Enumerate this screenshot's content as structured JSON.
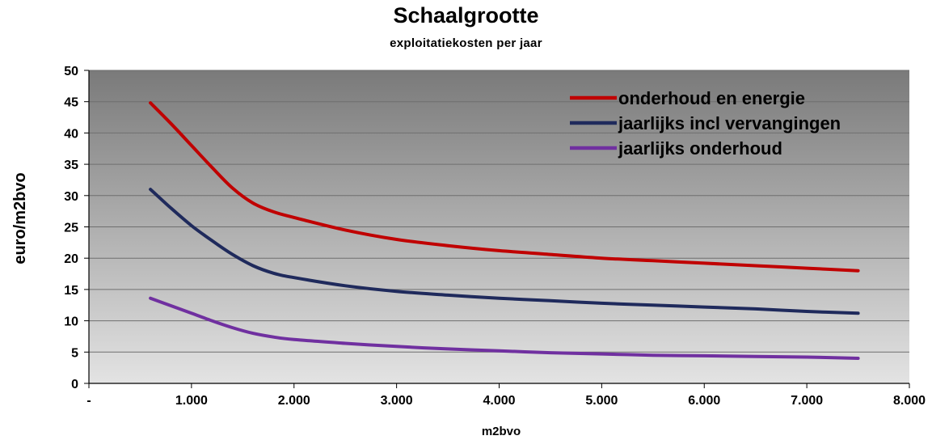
{
  "chart_data": {
    "type": "line",
    "title": "Schaalgrootte",
    "subtitle": "exploitatiekosten  per  jaar",
    "xlabel": "m2bvo",
    "ylabel": "euro/m2bvo",
    "xlim": [
      0,
      8000
    ],
    "ylim": [
      0,
      50
    ],
    "x_ticks": [
      0,
      1000,
      2000,
      3000,
      4000,
      5000,
      6000,
      7000,
      8000
    ],
    "x_tick_labels": [
      "-",
      "1.000",
      "2.000",
      "3.000",
      "4.000",
      "5.000",
      "6.000",
      "7.000",
      "8.000"
    ],
    "y_ticks": [
      0,
      5,
      10,
      15,
      20,
      25,
      30,
      35,
      40,
      45,
      50
    ],
    "y_tick_labels": [
      "0",
      "5",
      "10",
      "15",
      "20",
      "25",
      "30",
      "35",
      "40",
      "45",
      "50"
    ],
    "grid": "horizontal",
    "legend_position": "top-right",
    "background": "vertical gradient, dark grey at top to light grey at bottom",
    "x": [
      600,
      800,
      1000,
      1200,
      1400,
      1600,
      1800,
      2000,
      2500,
      3000,
      3500,
      4000,
      4500,
      5000,
      5500,
      6000,
      6500,
      7000,
      7500
    ],
    "series": [
      {
        "name": "onderhoud en energie",
        "color": "#c00000",
        "values": [
          44.8,
          41.5,
          38.0,
          34.5,
          31.2,
          28.8,
          27.4,
          26.5,
          24.5,
          23.0,
          22.0,
          21.2,
          20.6,
          20.0,
          19.6,
          19.2,
          18.8,
          18.4,
          18.0
        ]
      },
      {
        "name": "jaarlijks incl vervangingen",
        "color": "#1f2a5c",
        "values": [
          31.0,
          28.0,
          25.2,
          22.8,
          20.6,
          18.8,
          17.6,
          16.9,
          15.6,
          14.7,
          14.1,
          13.6,
          13.2,
          12.8,
          12.5,
          12.2,
          11.9,
          11.5,
          11.2
        ]
      },
      {
        "name": "jaarlijks onderhoud",
        "color": "#7030a0",
        "values": [
          13.6,
          12.4,
          11.2,
          10.0,
          8.9,
          8.0,
          7.4,
          7.0,
          6.4,
          5.9,
          5.5,
          5.2,
          4.9,
          4.7,
          4.5,
          4.4,
          4.3,
          4.2,
          4.0
        ]
      }
    ]
  }
}
